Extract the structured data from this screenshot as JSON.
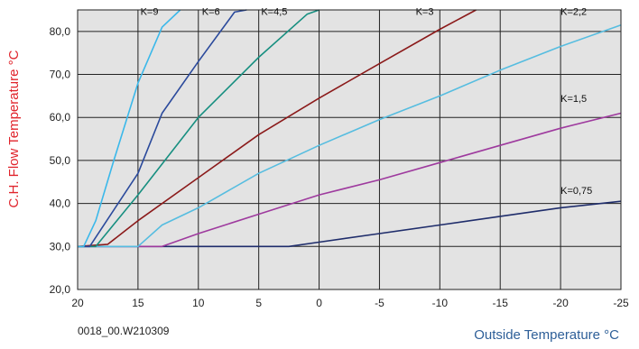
{
  "chart_data": {
    "type": "line",
    "title": "",
    "xlabel": "Outside Temperature °C",
    "ylabel": "C.H. Flow Temperature °C",
    "xlim": [
      20,
      -25
    ],
    "ylim": [
      20,
      85
    ],
    "x_ticks": [
      "20",
      "15",
      "10",
      "5",
      "0",
      "-5",
      "-10",
      "-15",
      "-20",
      "-25"
    ],
    "y_ticks": [
      "20,0",
      "30,0",
      "40,0",
      "50,0",
      "60,0",
      "70,0",
      "80,0"
    ],
    "grid": true,
    "series": [
      {
        "name": "K=0,75",
        "color": "#1f2d6b",
        "x": [
          20,
          2.5,
          0,
          -5,
          -10,
          -15,
          -20,
          -25
        ],
        "y": [
          30,
          30,
          31,
          33,
          35,
          37,
          39,
          40.5
        ]
      },
      {
        "name": "K=1,5",
        "color": "#9e3a9e",
        "x": [
          20,
          13,
          10,
          5,
          0,
          -5,
          -10,
          -15,
          -20,
          -25
        ],
        "y": [
          30,
          30,
          33,
          37.5,
          42,
          45.5,
          49.5,
          53.5,
          57.5,
          61
        ]
      },
      {
        "name": "K=2,2",
        "color": "#56bde0",
        "x": [
          20,
          15,
          13,
          10,
          5,
          0,
          -5,
          -10,
          -15,
          -20,
          -25
        ],
        "y": [
          30,
          30,
          35,
          39,
          47,
          53.5,
          59.5,
          65,
          71,
          76.5,
          81.5
        ]
      },
      {
        "name": "K=3",
        "color": "#8b1a1a",
        "x": [
          20,
          17.5,
          15,
          10,
          5,
          0,
          -5,
          -10,
          -13
        ],
        "y": [
          30,
          30.5,
          36,
          46,
          56,
          64.5,
          72.5,
          80.5,
          85
        ]
      },
      {
        "name": "K=4,5",
        "color": "#178f80",
        "x": [
          20,
          18.5,
          15,
          12.5,
          10,
          5,
          1,
          0
        ],
        "y": [
          30,
          30,
          42,
          51,
          60,
          74,
          84,
          85
        ]
      },
      {
        "name": "K=6",
        "color": "#2b4a9c",
        "x": [
          20,
          19,
          15,
          13,
          10,
          7,
          6
        ],
        "y": [
          30,
          30,
          47,
          61,
          73,
          84.5,
          85
        ]
      },
      {
        "name": "K=9",
        "color": "#3ab8ea",
        "x": [
          20,
          19.5,
          18.5,
          17,
          15,
          13,
          11.5
        ],
        "y": [
          30,
          30,
          36,
          50,
          68,
          81,
          85
        ]
      }
    ],
    "annotations": [
      "K=9",
      "K=6",
      "K=4,5",
      "K=3",
      "K=2,2",
      "K=1,5",
      "K=0,75"
    ]
  },
  "footer_code": "0018_00.W210309"
}
